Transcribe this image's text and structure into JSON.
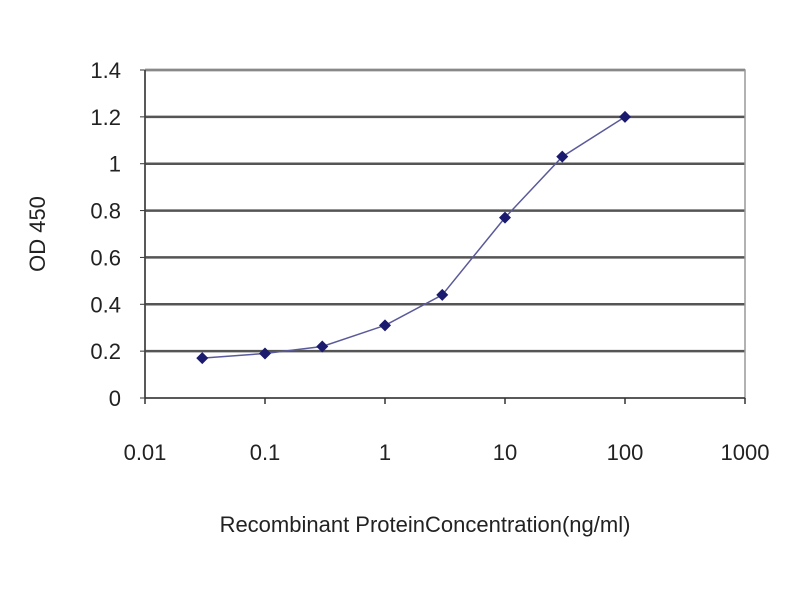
{
  "chart_data": {
    "type": "line",
    "title": "",
    "xlabel": "Recombinant ProteinConcentration(ng/ml)",
    "ylabel": "OD 450",
    "x_scale": "log",
    "xlim": [
      0.01,
      1000
    ],
    "ylim": [
      0,
      1.4
    ],
    "x_ticks": [
      "0.01",
      "0.1",
      "1",
      "10",
      "100",
      "1000"
    ],
    "y_ticks": [
      "0",
      "0.2",
      "0.4",
      "0.6",
      "0.8",
      "1",
      "1.2",
      "1.4"
    ],
    "grid": "horizontal",
    "series": [
      {
        "x": [
          0.03,
          0.1,
          0.3,
          1,
          3,
          10,
          30,
          100
        ],
        "y": [
          0.17,
          0.19,
          0.22,
          0.31,
          0.44,
          0.77,
          1.03,
          1.2
        ],
        "color": "#1a1a6e",
        "marker": "diamond"
      }
    ]
  }
}
